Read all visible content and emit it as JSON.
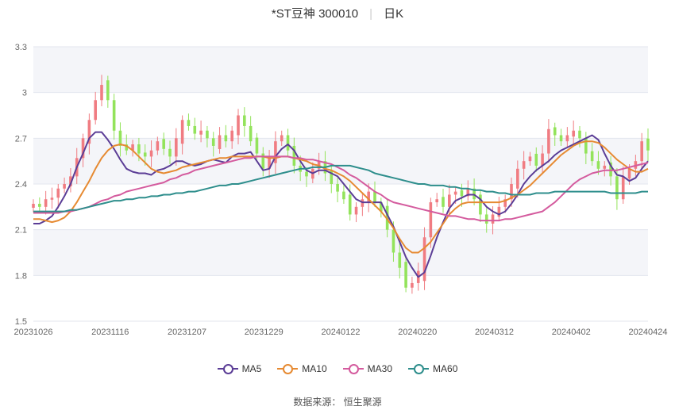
{
  "header": {
    "stock": "*ST豆神 300010",
    "period": "日K"
  },
  "source": "数据来源： 恒生聚源",
  "chart_data": {
    "type": "candlestick",
    "title": "*ST豆神 300010",
    "ylim": [
      1.5,
      3.3
    ],
    "y_ticks": [
      "3.3",
      "3",
      "2.7",
      "2.4",
      "2.1",
      "1.8",
      "1.5"
    ],
    "x_ticks": [
      "20231026",
      "20231116",
      "20231207",
      "20231229",
      "20240122",
      "20240220",
      "20240312",
      "20240402",
      "20240424"
    ],
    "up_color": "#f07c82",
    "down_color": "#93e35b",
    "closes": [
      2.27,
      2.25,
      2.3,
      2.31,
      2.37,
      2.4,
      2.45,
      2.57,
      2.7,
      2.82,
      2.95,
      3.05,
      2.95,
      2.75,
      2.65,
      2.62,
      2.66,
      2.6,
      2.58,
      2.62,
      2.68,
      2.63,
      2.58,
      2.7,
      2.82,
      2.78,
      2.73,
      2.75,
      2.7,
      2.65,
      2.72,
      2.68,
      2.75,
      2.85,
      2.78,
      2.68,
      2.6,
      2.5,
      2.57,
      2.68,
      2.72,
      2.62,
      2.52,
      2.48,
      2.45,
      2.5,
      2.55,
      2.47,
      2.4,
      2.35,
      2.3,
      2.2,
      2.25,
      2.3,
      2.35,
      2.28,
      2.22,
      2.1,
      1.95,
      1.85,
      1.72,
      1.75,
      1.83,
      2.05,
      2.28,
      2.3,
      2.25,
      2.33,
      2.35,
      2.32,
      2.37,
      2.3,
      2.2,
      2.14,
      2.2,
      2.25,
      2.3,
      2.4,
      2.5,
      2.55,
      2.58,
      2.52,
      2.6,
      2.76,
      2.72,
      2.68,
      2.72,
      2.75,
      2.7,
      2.6,
      2.55,
      2.5,
      2.52,
      2.45,
      2.3,
      2.45,
      2.5,
      2.55,
      2.68,
      2.62
    ],
    "series": [
      {
        "name": "MA5",
        "color": "#5b3d96",
        "values": [
          2.14,
          2.14,
          2.16,
          2.19,
          2.25,
          2.32,
          2.4,
          2.51,
          2.6,
          2.7,
          2.74,
          2.74,
          2.69,
          2.63,
          2.56,
          2.5,
          2.48,
          2.47,
          2.47,
          2.46,
          2.49,
          2.5,
          2.52,
          2.55,
          2.55,
          2.53,
          2.52,
          2.53,
          2.55,
          2.56,
          2.55,
          2.54,
          2.58,
          2.6,
          2.6,
          2.61,
          2.55,
          2.49,
          2.5,
          2.58,
          2.63,
          2.66,
          2.62,
          2.55,
          2.49,
          2.47,
          2.49,
          2.49,
          2.47,
          2.45,
          2.4,
          2.35,
          2.3,
          2.28,
          2.28,
          2.28,
          2.28,
          2.2,
          2.12,
          2.02,
          1.92,
          1.85,
          1.79,
          1.82,
          1.93,
          2.05,
          2.15,
          2.24,
          2.29,
          2.31,
          2.33,
          2.33,
          2.3,
          2.25,
          2.22,
          2.2,
          2.22,
          2.27,
          2.33,
          2.4,
          2.45,
          2.49,
          2.52,
          2.55,
          2.59,
          2.62,
          2.64,
          2.66,
          2.68,
          2.7,
          2.72,
          2.69,
          2.6,
          2.52,
          2.46,
          2.45,
          2.42,
          2.44,
          2.5,
          2.55
        ]
      },
      {
        "name": "MA10",
        "color": "#e68a32",
        "values": [
          2.17,
          2.17,
          2.16,
          2.15,
          2.16,
          2.18,
          2.22,
          2.28,
          2.35,
          2.42,
          2.5,
          2.57,
          2.62,
          2.65,
          2.66,
          2.65,
          2.62,
          2.58,
          2.54,
          2.5,
          2.48,
          2.47,
          2.48,
          2.49,
          2.51,
          2.52,
          2.53,
          2.54,
          2.55,
          2.56,
          2.57,
          2.57,
          2.58,
          2.58,
          2.58,
          2.58,
          2.58,
          2.58,
          2.57,
          2.57,
          2.58,
          2.58,
          2.57,
          2.56,
          2.55,
          2.53,
          2.52,
          2.5,
          2.49,
          2.47,
          2.45,
          2.42,
          2.38,
          2.34,
          2.3,
          2.26,
          2.22,
          2.17,
          2.11,
          2.04,
          1.98,
          1.95,
          1.95,
          1.98,
          2.02,
          2.08,
          2.14,
          2.2,
          2.24,
          2.27,
          2.28,
          2.28,
          2.28,
          2.28,
          2.28,
          2.28,
          2.29,
          2.31,
          2.33,
          2.36,
          2.39,
          2.43,
          2.47,
          2.51,
          2.55,
          2.59,
          2.62,
          2.65,
          2.67,
          2.68,
          2.68,
          2.67,
          2.64,
          2.6,
          2.56,
          2.53,
          2.5,
          2.48,
          2.48,
          2.5
        ]
      },
      {
        "name": "MA30",
        "color": "#d45b9e",
        "values": [
          2.21,
          2.21,
          2.21,
          2.21,
          2.21,
          2.22,
          2.22,
          2.23,
          2.24,
          2.25,
          2.27,
          2.29,
          2.3,
          2.32,
          2.33,
          2.35,
          2.36,
          2.37,
          2.38,
          2.39,
          2.4,
          2.41,
          2.43,
          2.44,
          2.46,
          2.47,
          2.49,
          2.5,
          2.51,
          2.52,
          2.53,
          2.54,
          2.55,
          2.56,
          2.57,
          2.57,
          2.58,
          2.58,
          2.58,
          2.58,
          2.58,
          2.58,
          2.57,
          2.57,
          2.56,
          2.56,
          2.55,
          2.54,
          2.53,
          2.51,
          2.49,
          2.46,
          2.44,
          2.41,
          2.38,
          2.35,
          2.33,
          2.3,
          2.28,
          2.27,
          2.26,
          2.25,
          2.24,
          2.23,
          2.22,
          2.21,
          2.2,
          2.19,
          2.19,
          2.18,
          2.17,
          2.17,
          2.16,
          2.16,
          2.16,
          2.16,
          2.17,
          2.17,
          2.18,
          2.19,
          2.2,
          2.21,
          2.22,
          2.25,
          2.28,
          2.32,
          2.36,
          2.4,
          2.43,
          2.45,
          2.47,
          2.48,
          2.49,
          2.49,
          2.49,
          2.5,
          2.51,
          2.52,
          2.53,
          2.54
        ]
      },
      {
        "name": "MA60",
        "color": "#2e8e8c",
        "values": [
          2.22,
          2.22,
          2.22,
          2.22,
          2.22,
          2.22,
          2.23,
          2.23,
          2.24,
          2.25,
          2.26,
          2.27,
          2.28,
          2.29,
          2.29,
          2.3,
          2.3,
          2.31,
          2.31,
          2.32,
          2.32,
          2.33,
          2.33,
          2.34,
          2.34,
          2.35,
          2.35,
          2.36,
          2.37,
          2.38,
          2.39,
          2.39,
          2.4,
          2.4,
          2.41,
          2.42,
          2.43,
          2.44,
          2.45,
          2.46,
          2.47,
          2.48,
          2.49,
          2.5,
          2.5,
          2.51,
          2.51,
          2.51,
          2.52,
          2.52,
          2.52,
          2.52,
          2.51,
          2.5,
          2.49,
          2.47,
          2.46,
          2.45,
          2.44,
          2.43,
          2.42,
          2.41,
          2.4,
          2.4,
          2.39,
          2.39,
          2.39,
          2.38,
          2.38,
          2.37,
          2.37,
          2.36,
          2.36,
          2.35,
          2.35,
          2.34,
          2.34,
          2.33,
          2.33,
          2.33,
          2.33,
          2.34,
          2.34,
          2.34,
          2.35,
          2.35,
          2.35,
          2.35,
          2.35,
          2.35,
          2.35,
          2.35,
          2.35,
          2.34,
          2.34,
          2.34,
          2.34,
          2.34,
          2.35,
          2.35
        ]
      }
    ]
  }
}
